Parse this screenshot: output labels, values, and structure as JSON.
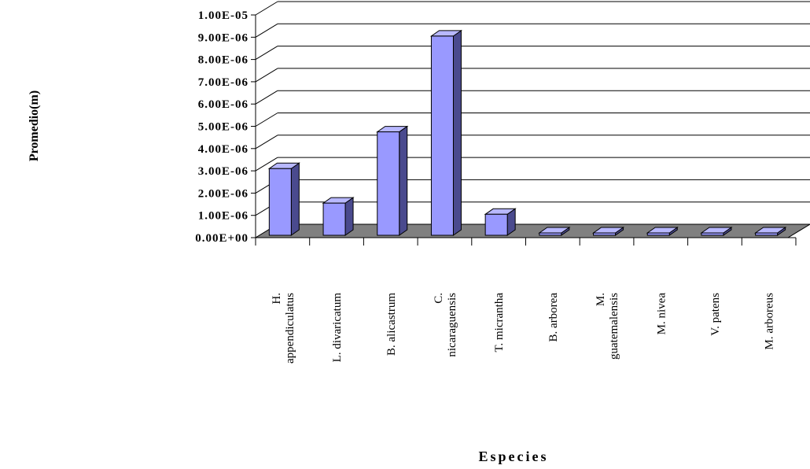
{
  "chart_data": {
    "type": "bar",
    "style": "3d-column",
    "title": "",
    "xlabel": "Especies",
    "ylabel": "Promedio(m)",
    "ylim": [
      0,
      1e-05
    ],
    "y_ticks": [
      "0.00E+00",
      "1.00E-06",
      "2.00E-06",
      "3.00E-06",
      "4.00E-06",
      "5.00E-06",
      "6.00E-06",
      "7.00E-06",
      "8.00E-06",
      "9.00E-06",
      "1.00E-05"
    ],
    "categories": [
      [
        "H.",
        "appendiculatus"
      ],
      [
        "L. divaricatum"
      ],
      [
        "B. alicastrum"
      ],
      [
        "C.",
        "nicaraguensis"
      ],
      [
        "T. micrantha"
      ],
      [
        "B. arborea"
      ],
      [
        "M.",
        "guatemalensis"
      ],
      [
        "M. nivea"
      ],
      [
        "V. patens"
      ],
      [
        "M. arboreus"
      ]
    ],
    "values": [
      3.1e-06,
      1.55e-06,
      4.75e-06,
      9.05e-06,
      1.05e-06,
      8e-08,
      1.2e-07,
      3e-08,
      2e-08,
      4e-08
    ],
    "grid": true,
    "legend": "none",
    "colors": {
      "bar_front": "#9999ff",
      "bar_side": "#4a4a8e",
      "bar_top": "#b8b8ff",
      "floor": "#808080",
      "grid": "#000000"
    }
  }
}
